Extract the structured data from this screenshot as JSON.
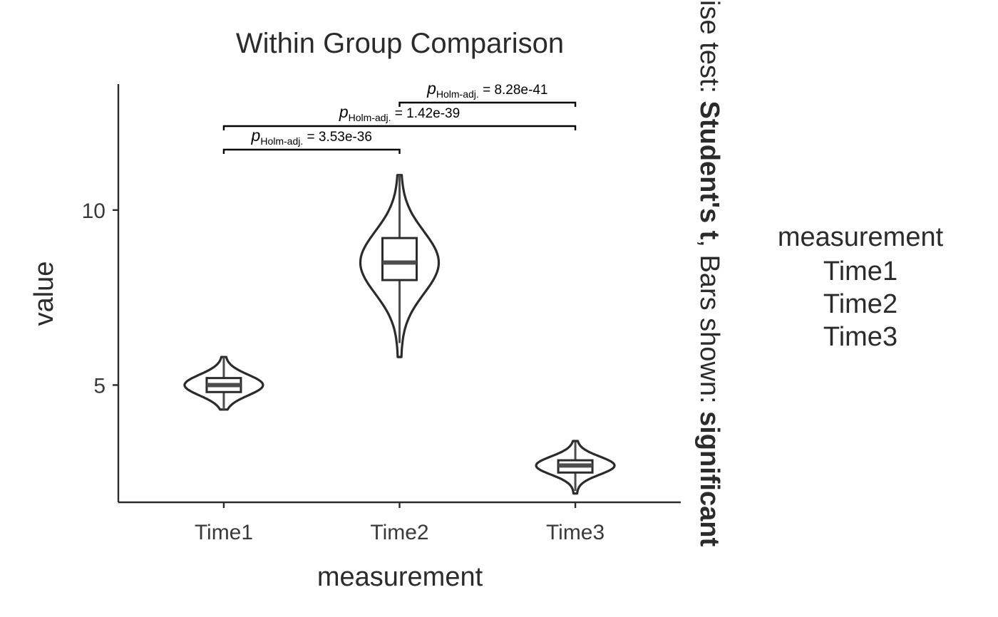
{
  "chart_data": {
    "type": "violin",
    "title": "Within Group Comparison",
    "xlabel": "measurement",
    "ylabel": "value",
    "categories": [
      "Time1",
      "Time2",
      "Time3"
    ],
    "y_ticks": [
      5,
      10
    ],
    "ylim": [
      1.65,
      13.6
    ],
    "groups": [
      {
        "name": "Time1",
        "min": 4.3,
        "q1": 4.8,
        "median": 5.0,
        "q3": 5.2,
        "max": 5.8
      },
      {
        "name": "Time2",
        "min": 5.8,
        "q1": 8.0,
        "median": 8.5,
        "q3": 9.2,
        "max": 11.0
      },
      {
        "name": "Time3",
        "min": 1.9,
        "q1": 2.5,
        "median": 2.7,
        "q3": 2.85,
        "max": 3.4
      }
    ],
    "comparisons": [
      {
        "from": "Time1",
        "to": "Time2",
        "label": "3.53e-36",
        "level": 1
      },
      {
        "from": "Time1",
        "to": "Time3",
        "label": "1.42e-39",
        "level": 2
      },
      {
        "from": "Time2",
        "to": "Time3",
        "label": "8.28e-41",
        "level": 3
      }
    ],
    "p_label": {
      "symbol": "p",
      "subscript": "Holm-adj.",
      "eq": " = "
    },
    "side_caption": {
      "prefix": "Pairwise test: ",
      "test": "Student's t",
      "mid": ", Bars shown: ",
      "bars": "significant"
    },
    "legend": {
      "title": "measurement",
      "items": [
        "Time1",
        "Time2",
        "Time3"
      ]
    },
    "grid": false,
    "legend_position": "right"
  }
}
